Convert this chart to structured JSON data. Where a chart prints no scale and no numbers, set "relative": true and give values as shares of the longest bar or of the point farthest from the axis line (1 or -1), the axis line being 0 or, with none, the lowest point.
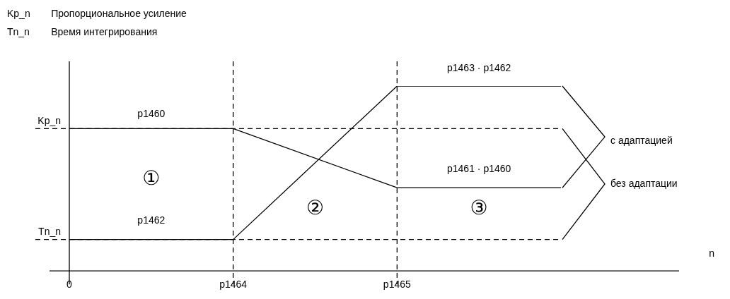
{
  "chart_data": {
    "type": "line",
    "relative": true,
    "marker": "none",
    "line_style": "solid",
    "categories": [
      "0",
      "p1464",
      "p1465",
      null
    ],
    "series": [
      {
        "color": "#000000",
        "values": [
          0.77,
          0.77,
          0.45,
          0.45
        ]
      },
      {
        "color": "#000000",
        "values": [
          0.17,
          0.17,
          1,
          1
        ]
      }
    ],
    "ref_lines": [
      {
        "axis": "y",
        "value": 0.77,
        "label": "Kp_n",
        "line_style": "dashed",
        "color": "#000000"
      },
      {
        "axis": "y",
        "value": 0.17,
        "label": "Tn_n",
        "line_style": "dashed",
        "color": "#000000"
      },
      {
        "axis": "x",
        "value": "0",
        "label": null,
        "line_style": "solid",
        "color": "#000000"
      },
      {
        "axis": "x",
        "value": "p1464",
        "label": null,
        "line_style": "dashed",
        "color": "#000000"
      },
      {
        "axis": "x",
        "value": "p1465",
        "label": null,
        "line_style": "dashed",
        "color": "#000000"
      }
    ],
    "annotations": [
      "Kp_n\tПропорциональное усиление",
      "Tn_n\tВремя интегрирования",
      "с адаптацией",
      "без адаптации",
      "p1460",
      "p1462",
      "p1463 · p1462",
      "p1461 · p1460",
      "①",
      "②",
      "③",
      "n"
    ]
  }
}
